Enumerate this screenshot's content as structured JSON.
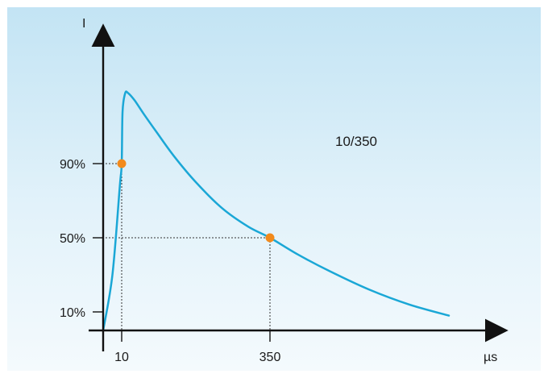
{
  "chart_data": {
    "type": "line",
    "title": "",
    "ylabel": "I",
    "xlabel": "µs",
    "annotation": "10/350",
    "x_ticks": [
      {
        "label": "10",
        "value": 10
      },
      {
        "label": "350",
        "value": 350
      }
    ],
    "y_ticks": [
      {
        "label": "90%",
        "value": 90
      },
      {
        "label": "50%",
        "value": 50
      },
      {
        "label": "10%",
        "value": 10
      }
    ],
    "series": [
      {
        "color": "#1aa7d6",
        "x": [
          0,
          5,
          9,
          10,
          12,
          18,
          25,
          40,
          60,
          90,
          130,
          180,
          240,
          300,
          350,
          420,
          500,
          600,
          700,
          800
        ],
        "y": [
          0,
          30,
          78,
          90,
          118,
          128,
          128,
          124,
          117,
          107,
          94,
          80,
          66,
          56,
          50,
          41,
          32,
          22,
          14,
          8
        ]
      }
    ],
    "markers": [
      {
        "x": 10,
        "y": 90,
        "color": "#f28a1c"
      },
      {
        "x": 350,
        "y": 50,
        "color": "#f28a1c"
      }
    ],
    "xlim": [
      0,
      900
    ],
    "ylim": [
      0,
      160
    ],
    "grid": false
  }
}
